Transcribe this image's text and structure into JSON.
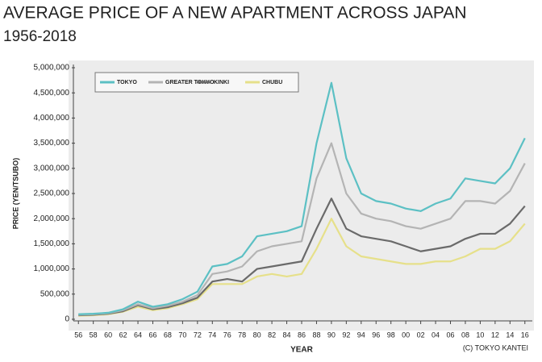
{
  "chart_data": {
    "type": "line",
    "title": "AVERAGE PRICE OF A NEW APARTMENT ACROSS JAPAN",
    "subtitle": "1956-2018",
    "x_label": "YEAR",
    "y_label": "PRICE (YEN/TSUBO)",
    "source": "(C) TOKYO KANTEI",
    "x": [
      1956,
      1958,
      1960,
      1962,
      1964,
      1966,
      1968,
      1970,
      1972,
      1974,
      1976,
      1978,
      1980,
      1982,
      1984,
      1986,
      1988,
      1990,
      1992,
      1994,
      1996,
      1998,
      2000,
      2002,
      2004,
      2006,
      2008,
      2010,
      2012,
      2014,
      2016
    ],
    "series": [
      {
        "name": "TOKYO",
        "color": "#5cc0c4",
        "values": [
          100000,
          110000,
          130000,
          200000,
          350000,
          250000,
          300000,
          400000,
          550000,
          1050000,
          1100000,
          1250000,
          1650000,
          1700000,
          1750000,
          1850000,
          3500000,
          4700000,
          3200000,
          2500000,
          2350000,
          2300000,
          2200000,
          2150000,
          2300000,
          2400000,
          2800000,
          2750000,
          2700000,
          3000000,
          3600000
        ]
      },
      {
        "name": "GREATER TOKYO",
        "color": "#b4b4b4",
        "values": [
          90000,
          100000,
          120000,
          180000,
          300000,
          220000,
          270000,
          350000,
          480000,
          900000,
          950000,
          1050000,
          1350000,
          1450000,
          1500000,
          1550000,
          2800000,
          3500000,
          2500000,
          2100000,
          2000000,
          1950000,
          1850000,
          1800000,
          1900000,
          2000000,
          2350000,
          2350000,
          2300000,
          2550000,
          3100000
        ]
      },
      {
        "name": "KINKI",
        "color": "#6a6a6a",
        "values": [
          80000,
          90000,
          110000,
          160000,
          280000,
          200000,
          240000,
          320000,
          430000,
          750000,
          800000,
          750000,
          1000000,
          1050000,
          1100000,
          1150000,
          1800000,
          2400000,
          1800000,
          1650000,
          1600000,
          1550000,
          1450000,
          1350000,
          1400000,
          1450000,
          1600000,
          1700000,
          1700000,
          1900000,
          2250000
        ]
      },
      {
        "name": "CHUBU",
        "color": "#e6e08a",
        "values": [
          70000,
          80000,
          100000,
          150000,
          250000,
          180000,
          220000,
          300000,
          400000,
          700000,
          700000,
          700000,
          850000,
          900000,
          850000,
          900000,
          1400000,
          2000000,
          1450000,
          1250000,
          1200000,
          1150000,
          1100000,
          1100000,
          1150000,
          1150000,
          1250000,
          1400000,
          1400000,
          1550000,
          1900000
        ]
      }
    ],
    "xlim": [
      1955,
      2017
    ],
    "xticks": [
      {
        "value": 1956,
        "label": "56"
      },
      {
        "value": 1958,
        "label": "58"
      },
      {
        "value": 1960,
        "label": "60"
      },
      {
        "value": 1962,
        "label": "62"
      },
      {
        "value": 1964,
        "label": "64"
      },
      {
        "value": 1966,
        "label": "66"
      },
      {
        "value": 1968,
        "label": "68"
      },
      {
        "value": 1970,
        "label": "70"
      },
      {
        "value": 1972,
        "label": "72"
      },
      {
        "value": 1974,
        "label": "74"
      },
      {
        "value": 1976,
        "label": "76"
      },
      {
        "value": 1978,
        "label": "78"
      },
      {
        "value": 1980,
        "label": "80"
      },
      {
        "value": 1982,
        "label": "82"
      },
      {
        "value": 1984,
        "label": "84"
      },
      {
        "value": 1986,
        "label": "86"
      },
      {
        "value": 1988,
        "label": "88"
      },
      {
        "value": 1990,
        "label": "90"
      },
      {
        "value": 1992,
        "label": "92"
      },
      {
        "value": 1994,
        "label": "94"
      },
      {
        "value": 1996,
        "label": "96"
      },
      {
        "value": 1998,
        "label": "98"
      },
      {
        "value": 2000,
        "label": "00"
      },
      {
        "value": 2002,
        "label": "02"
      },
      {
        "value": 2004,
        "label": "04"
      },
      {
        "value": 2006,
        "label": "06"
      },
      {
        "value": 2008,
        "label": "08"
      },
      {
        "value": 2010,
        "label": "10"
      },
      {
        "value": 2012,
        "label": "12"
      },
      {
        "value": 2014,
        "label": "14"
      },
      {
        "value": 2016,
        "label": "16"
      }
    ],
    "ylim": [
      0,
      5000000
    ],
    "yticks": [
      0,
      {
        "value": 500000,
        "label": "500,000"
      },
      {
        "value": 1000000,
        "label": "1,000,000"
      },
      {
        "value": 1500000,
        "label": "1,500,000"
      },
      {
        "value": 2000000,
        "label": "2,000,000"
      },
      {
        "value": 2500000,
        "label": "2,500,000"
      },
      {
        "value": 3000000,
        "label": "3,000,000"
      },
      {
        "value": 3500000,
        "label": "3,500,000"
      },
      {
        "value": 4000000,
        "label": "4,000,000"
      },
      {
        "value": 4500000,
        "label": "4,500,000"
      },
      {
        "value": 5000000,
        "label": "5,000,000"
      }
    ]
  }
}
